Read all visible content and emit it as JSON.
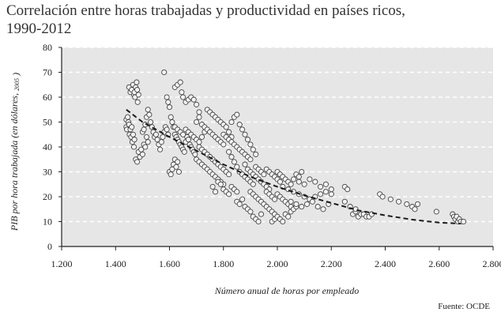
{
  "chart_data": {
    "type": "scatter",
    "title": "Correlación entre horas trabajadas y productividad en países ricos,",
    "subtitle": "1990-2012",
    "xlabel": "Número anual de horas por empleado",
    "ylabel_main": "PIB por hora trabajada (en dólares,",
    "ylabel_sub": "2005",
    "ylabel_close": ")",
    "source": "Fuente: OCDE",
    "xlim": [
      1200,
      2800
    ],
    "ylim": [
      0,
      80
    ],
    "x_ticks": [
      1200,
      1400,
      1600,
      1800,
      2000,
      2200,
      2400,
      2600,
      2800
    ],
    "x_tick_labels": [
      "1.200",
      "1.400",
      "1.600",
      "1.800",
      "2.000",
      "2.200",
      "2.400",
      "2.600",
      "2.800"
    ],
    "y_ticks": [
      0,
      10,
      20,
      30,
      40,
      50,
      60,
      70,
      80
    ],
    "y_tick_labels": [
      "0",
      "10",
      "20",
      "30",
      "40",
      "50",
      "60",
      "70",
      "80"
    ],
    "grid": "horizontal dashed",
    "background_color": "#e6e6e6",
    "marker": "open circle",
    "trendline": {
      "style": "dashed",
      "points": [
        [
          1440,
          55
        ],
        [
          1500,
          50
        ],
        [
          1600,
          44
        ],
        [
          1700,
          38.5
        ],
        [
          1800,
          33
        ],
        [
          1900,
          28
        ],
        [
          2000,
          24
        ],
        [
          2100,
          20.5
        ],
        [
          2200,
          17.5
        ],
        [
          2300,
          14.5
        ],
        [
          2400,
          12.5
        ],
        [
          2500,
          10.8
        ],
        [
          2600,
          9.6
        ],
        [
          2680,
          9.2
        ]
      ]
    },
    "points": [
      [
        1440,
        51
      ],
      [
        1440,
        48
      ],
      [
        1442,
        47
      ],
      [
        1445,
        52
      ],
      [
        1448,
        50
      ],
      [
        1450,
        49
      ],
      [
        1452,
        45
      ],
      [
        1455,
        47
      ],
      [
        1458,
        44
      ],
      [
        1460,
        48
      ],
      [
        1462,
        42
      ],
      [
        1465,
        45
      ],
      [
        1468,
        40
      ],
      [
        1470,
        43
      ],
      [
        1450,
        64
      ],
      [
        1455,
        62
      ],
      [
        1460,
        63
      ],
      [
        1465,
        65
      ],
      [
        1468,
        61
      ],
      [
        1470,
        62
      ],
      [
        1472,
        60
      ],
      [
        1475,
        64
      ],
      [
        1478,
        66
      ],
      [
        1480,
        63
      ],
      [
        1482,
        58
      ],
      [
        1485,
        61
      ],
      [
        1475,
        35
      ],
      [
        1480,
        34
      ],
      [
        1485,
        38
      ],
      [
        1490,
        36
      ],
      [
        1495,
        39
      ],
      [
        1500,
        37
      ],
      [
        1505,
        41
      ],
      [
        1510,
        40
      ],
      [
        1515,
        44
      ],
      [
        1520,
        42
      ],
      [
        1500,
        46
      ],
      [
        1505,
        47
      ],
      [
        1510,
        49
      ],
      [
        1515,
        52
      ],
      [
        1520,
        55
      ],
      [
        1525,
        53
      ],
      [
        1530,
        50
      ],
      [
        1535,
        48
      ],
      [
        1540,
        46
      ],
      [
        1545,
        44
      ],
      [
        1550,
        45
      ],
      [
        1555,
        43
      ],
      [
        1560,
        41
      ],
      [
        1565,
        39
      ],
      [
        1570,
        42
      ],
      [
        1575,
        44
      ],
      [
        1580,
        46
      ],
      [
        1585,
        48
      ],
      [
        1590,
        47
      ],
      [
        1595,
        45
      ],
      [
        1580,
        70
      ],
      [
        1590,
        60
      ],
      [
        1595,
        58
      ],
      [
        1600,
        56
      ],
      [
        1605,
        52
      ],
      [
        1610,
        50
      ],
      [
        1615,
        48
      ],
      [
        1600,
        30
      ],
      [
        1605,
        29
      ],
      [
        1610,
        31
      ],
      [
        1615,
        33
      ],
      [
        1620,
        35
      ],
      [
        1625,
        32
      ],
      [
        1630,
        34
      ],
      [
        1635,
        30
      ],
      [
        1620,
        64
      ],
      [
        1630,
        65
      ],
      [
        1640,
        66
      ],
      [
        1645,
        62
      ],
      [
        1650,
        60
      ],
      [
        1660,
        58
      ],
      [
        1670,
        59
      ],
      [
        1680,
        60
      ],
      [
        1690,
        59
      ],
      [
        1700,
        57
      ],
      [
        1710,
        54
      ],
      [
        1620,
        45
      ],
      [
        1625,
        44
      ],
      [
        1630,
        43
      ],
      [
        1635,
        42
      ],
      [
        1640,
        41
      ],
      [
        1645,
        40
      ],
      [
        1650,
        39
      ],
      [
        1655,
        38
      ],
      [
        1660,
        42
      ],
      [
        1665,
        44
      ],
      [
        1670,
        43
      ],
      [
        1675,
        41
      ],
      [
        1680,
        40
      ],
      [
        1685,
        39
      ],
      [
        1690,
        38
      ],
      [
        1695,
        37
      ],
      [
        1620,
        48
      ],
      [
        1630,
        47
      ],
      [
        1640,
        46
      ],
      [
        1650,
        45
      ],
      [
        1660,
        47
      ],
      [
        1670,
        46
      ],
      [
        1680,
        45
      ],
      [
        1690,
        44
      ],
      [
        1700,
        43
      ],
      [
        1710,
        42
      ],
      [
        1720,
        44
      ],
      [
        1730,
        46
      ],
      [
        1700,
        50
      ],
      [
        1710,
        52
      ],
      [
        1720,
        49
      ],
      [
        1730,
        48
      ],
      [
        1740,
        47
      ],
      [
        1750,
        46
      ],
      [
        1760,
        45
      ],
      [
        1770,
        44
      ],
      [
        1780,
        43
      ],
      [
        1790,
        42
      ],
      [
        1800,
        41
      ],
      [
        1700,
        35
      ],
      [
        1710,
        34
      ],
      [
        1720,
        33
      ],
      [
        1730,
        32
      ],
      [
        1740,
        31
      ],
      [
        1750,
        30
      ],
      [
        1760,
        29
      ],
      [
        1770,
        28
      ],
      [
        1780,
        27
      ],
      [
        1790,
        26
      ],
      [
        1800,
        25
      ],
      [
        1710,
        40
      ],
      [
        1720,
        39
      ],
      [
        1730,
        38
      ],
      [
        1740,
        37
      ],
      [
        1750,
        36
      ],
      [
        1760,
        35
      ],
      [
        1770,
        34
      ],
      [
        1780,
        33
      ],
      [
        1790,
        32
      ],
      [
        1800,
        31
      ],
      [
        1810,
        30
      ],
      [
        1820,
        29
      ],
      [
        1740,
        55
      ],
      [
        1750,
        54
      ],
      [
        1760,
        53
      ],
      [
        1770,
        52
      ],
      [
        1780,
        51
      ],
      [
        1790,
        50
      ],
      [
        1800,
        49
      ],
      [
        1810,
        48
      ],
      [
        1820,
        46
      ],
      [
        1830,
        44
      ],
      [
        1760,
        24
      ],
      [
        1770,
        22
      ],
      [
        1780,
        26
      ],
      [
        1790,
        25
      ],
      [
        1800,
        23
      ],
      [
        1810,
        22
      ],
      [
        1820,
        21
      ],
      [
        1830,
        24
      ],
      [
        1840,
        23
      ],
      [
        1850,
        22
      ],
      [
        1800,
        45
      ],
      [
        1810,
        44
      ],
      [
        1820,
        43
      ],
      [
        1830,
        42
      ],
      [
        1840,
        41
      ],
      [
        1850,
        40
      ],
      [
        1860,
        39
      ],
      [
        1870,
        38
      ],
      [
        1880,
        37
      ],
      [
        1890,
        36
      ],
      [
        1900,
        35
      ],
      [
        1820,
        38
      ],
      [
        1830,
        36
      ],
      [
        1840,
        34
      ],
      [
        1850,
        32
      ],
      [
        1860,
        30
      ],
      [
        1870,
        29
      ],
      [
        1880,
        28
      ],
      [
        1890,
        27
      ],
      [
        1900,
        26
      ],
      [
        1910,
        25
      ],
      [
        1830,
        50
      ],
      [
        1840,
        52
      ],
      [
        1850,
        53
      ],
      [
        1860,
        49
      ],
      [
        1870,
        47
      ],
      [
        1880,
        45
      ],
      [
        1890,
        43
      ],
      [
        1900,
        41
      ],
      [
        1910,
        39
      ],
      [
        1920,
        37
      ],
      [
        1850,
        18
      ],
      [
        1860,
        17
      ],
      [
        1870,
        19
      ],
      [
        1880,
        16
      ],
      [
        1890,
        15
      ],
      [
        1900,
        14
      ],
      [
        1910,
        12
      ],
      [
        1920,
        11
      ],
      [
        1930,
        10
      ],
      [
        1940,
        13
      ],
      [
        1880,
        33
      ],
      [
        1890,
        31
      ],
      [
        1900,
        30
      ],
      [
        1910,
        29
      ],
      [
        1920,
        28
      ],
      [
        1930,
        27
      ],
      [
        1940,
        26
      ],
      [
        1950,
        25
      ],
      [
        1960,
        24
      ],
      [
        1970,
        23
      ],
      [
        1900,
        22
      ],
      [
        1910,
        21
      ],
      [
        1920,
        20
      ],
      [
        1930,
        19
      ],
      [
        1940,
        18
      ],
      [
        1950,
        17
      ],
      [
        1960,
        16
      ],
      [
        1970,
        15
      ],
      [
        1980,
        14
      ],
      [
        1990,
        13
      ],
      [
        1920,
        32
      ],
      [
        1930,
        31
      ],
      [
        1940,
        30
      ],
      [
        1950,
        29
      ],
      [
        1960,
        31
      ],
      [
        1970,
        30
      ],
      [
        1980,
        29
      ],
      [
        1990,
        28
      ],
      [
        2000,
        27
      ],
      [
        2010,
        26
      ],
      [
        1960,
        22
      ],
      [
        1970,
        21
      ],
      [
        1980,
        20
      ],
      [
        1990,
        19
      ],
      [
        2000,
        21
      ],
      [
        2010,
        20
      ],
      [
        2020,
        19
      ],
      [
        2030,
        18
      ],
      [
        2040,
        17
      ],
      [
        2050,
        16
      ],
      [
        1980,
        10
      ],
      [
        1990,
        11
      ],
      [
        2000,
        12
      ],
      [
        2010,
        11
      ],
      [
        2020,
        10
      ],
      [
        2030,
        13
      ],
      [
        2040,
        12
      ],
      [
        2050,
        14
      ],
      [
        2060,
        15
      ],
      [
        2070,
        16
      ],
      [
        2000,
        30
      ],
      [
        2010,
        29
      ],
      [
        2020,
        28
      ],
      [
        2030,
        27
      ],
      [
        2040,
        26
      ],
      [
        2050,
        25
      ],
      [
        2060,
        27
      ],
      [
        2070,
        29
      ],
      [
        2080,
        28
      ],
      [
        2090,
        30
      ],
      [
        2020,
        24
      ],
      [
        2040,
        23
      ],
      [
        2060,
        22
      ],
      [
        2080,
        21
      ],
      [
        2100,
        20
      ],
      [
        2120,
        19
      ],
      [
        2140,
        20
      ],
      [
        2160,
        21
      ],
      [
        2180,
        22
      ],
      [
        2200,
        21
      ],
      [
        2050,
        18
      ],
      [
        2070,
        17
      ],
      [
        2090,
        16
      ],
      [
        2110,
        17
      ],
      [
        2130,
        18
      ],
      [
        2150,
        16
      ],
      [
        2170,
        15
      ],
      [
        2190,
        17
      ],
      [
        2080,
        26
      ],
      [
        2100,
        25
      ],
      [
        2120,
        27
      ],
      [
        2140,
        26
      ],
      [
        2160,
        24
      ],
      [
        2180,
        25
      ],
      [
        2200,
        23
      ],
      [
        2250,
        24
      ],
      [
        2260,
        23
      ],
      [
        2280,
        13
      ],
      [
        2290,
        14
      ],
      [
        2300,
        12
      ],
      [
        2310,
        13
      ],
      [
        2320,
        13
      ],
      [
        2330,
        12
      ],
      [
        2340,
        12
      ],
      [
        2350,
        13
      ],
      [
        2250,
        18
      ],
      [
        2270,
        16
      ],
      [
        2290,
        15
      ],
      [
        2380,
        21
      ],
      [
        2390,
        20
      ],
      [
        2420,
        19
      ],
      [
        2450,
        18
      ],
      [
        2480,
        17
      ],
      [
        2500,
        16
      ],
      [
        2510,
        15
      ],
      [
        2520,
        17
      ],
      [
        2590,
        14
      ],
      [
        2650,
        13
      ],
      [
        2655,
        12
      ],
      [
        2660,
        11
      ],
      [
        2665,
        12
      ],
      [
        2670,
        10
      ],
      [
        2675,
        11
      ],
      [
        2680,
        10
      ],
      [
        2690,
        10
      ]
    ]
  }
}
